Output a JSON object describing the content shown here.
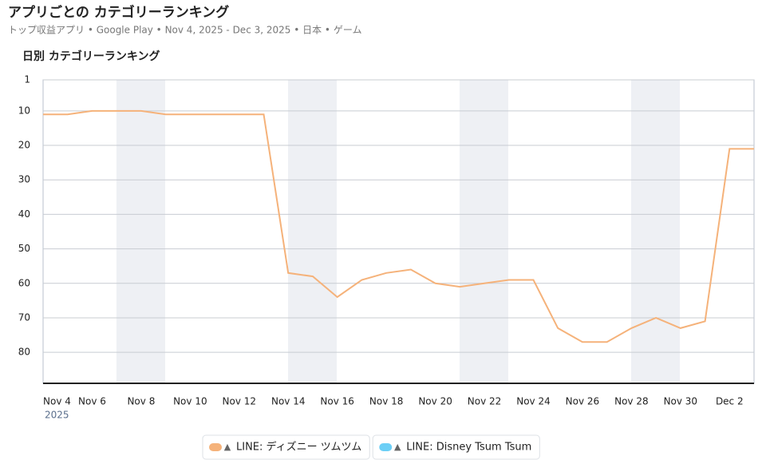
{
  "chart_data": {
    "type": "line",
    "title": "アプリごとの カテゴリーランキング",
    "subtitle": "トップ収益アプリ • Google Play • Nov 4, 2025 - Dec 3, 2025 • 日本 • ゲーム",
    "chart_title": "日別 カテゴリーランキング",
    "categories": [
      "Nov 4",
      null,
      "Nov 6",
      null,
      "Nov 8",
      null,
      "Nov 10",
      null,
      "Nov 12",
      null,
      "Nov 14",
      null,
      "Nov 16",
      null,
      "Nov 18",
      null,
      "Nov 20",
      null,
      "Nov 22",
      null,
      "Nov 24",
      null,
      "Nov 26",
      null,
      "Nov 28",
      null,
      "Nov 30",
      null,
      "Dec 2",
      null
    ],
    "x_sublabel": "2025",
    "series": [
      {
        "name": "LINE: ディズニー ツムツム",
        "color": "#f5b27a",
        "values": [
          11,
          11,
          10,
          10,
          10,
          11,
          11,
          11,
          11,
          11,
          57,
          58,
          64,
          59,
          57,
          56,
          60,
          61,
          60,
          59,
          59,
          73,
          77,
          77,
          73,
          70,
          73,
          71,
          21,
          21
        ]
      },
      {
        "name": "LINE: Disney Tsum Tsum",
        "color": "#6ccff6",
        "values": [
          null,
          null,
          null,
          null,
          null,
          null,
          null,
          null,
          null,
          null,
          null,
          null,
          null,
          null,
          null,
          null,
          null,
          null,
          null,
          null,
          null,
          null,
          null,
          null,
          null,
          null,
          null,
          null,
          null,
          null
        ]
      }
    ],
    "ylim": [
      1,
      89
    ],
    "yticks": [
      1,
      10,
      20,
      30,
      40,
      50,
      60,
      70,
      80
    ],
    "inverted": true,
    "grid": true
  }
}
